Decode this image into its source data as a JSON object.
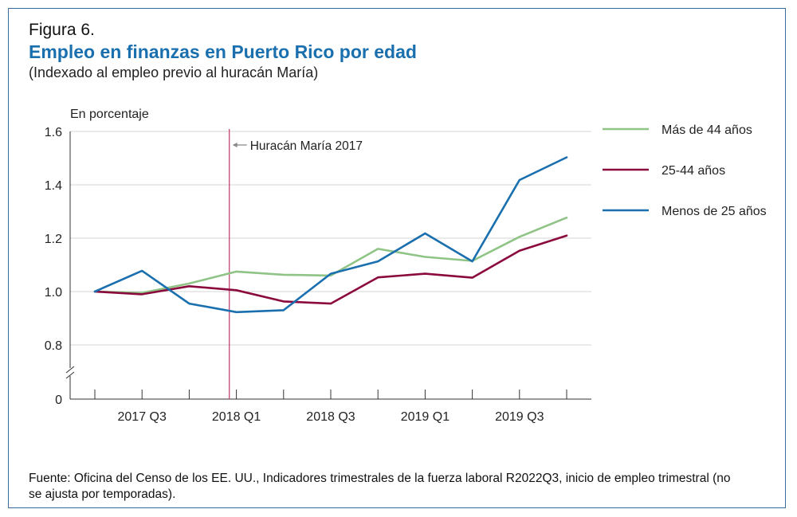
{
  "figure": {
    "label": "Figura 6.",
    "title": "Empleo en finanzas en Puerto Rico por edad",
    "subtitle": "(Indexado al empleo previo al huracán María)",
    "source": "Fuente: Oficina del Censo de los EE. UU., Indicadores trimestrales de la fuerza laboral R2022Q3, inicio de empleo trimestral (no se ajusta por temporadas)."
  },
  "chart_data": {
    "type": "line",
    "ylabel": "En porcentaje",
    "ylim": [
      0.7,
      1.6
    ],
    "y_ticks": [
      "1.6",
      "1.4",
      "1.2",
      "1.0",
      "0.8"
    ],
    "y_ticks_values": [
      1.6,
      1.4,
      1.2,
      1.0,
      0.8
    ],
    "y_zero_label": "0",
    "axis_break": true,
    "grid": true,
    "x_tick_labels": [
      "2017 Q3",
      "2018 Q1",
      "2018 Q3",
      "2019 Q1",
      "2019 Q3"
    ],
    "x_tick_label_indices": [
      1,
      3,
      5,
      7,
      9
    ],
    "x": [
      "2017 Q2",
      "2017 Q3",
      "2017 Q4",
      "2018 Q1",
      "2018 Q2",
      "2018 Q3",
      "2018 Q4",
      "2019 Q1",
      "2019 Q2",
      "2019 Q3",
      "2019 Q4"
    ],
    "annotation": {
      "text": "Huracán María 2017",
      "x_index": 2.85
    },
    "legend_position": "right",
    "series": [
      {
        "name": "Más de 44 años",
        "color": "#8fc486",
        "values": [
          1.0,
          0.995,
          1.03,
          1.075,
          1.063,
          1.06,
          1.16,
          1.13,
          1.115,
          1.205,
          1.277
        ]
      },
      {
        "name": "25-44 años",
        "color": "#8b0a3e",
        "values": [
          1.0,
          0.99,
          1.02,
          1.005,
          0.963,
          0.955,
          1.053,
          1.067,
          1.052,
          1.153,
          1.21
        ]
      },
      {
        "name": "Menos de 25 años",
        "color": "#1a6fae",
        "values": [
          1.0,
          1.078,
          0.955,
          0.923,
          0.93,
          1.067,
          1.113,
          1.218,
          1.113,
          1.418,
          1.503
        ]
      }
    ],
    "annotation_color": "#c0336a"
  }
}
